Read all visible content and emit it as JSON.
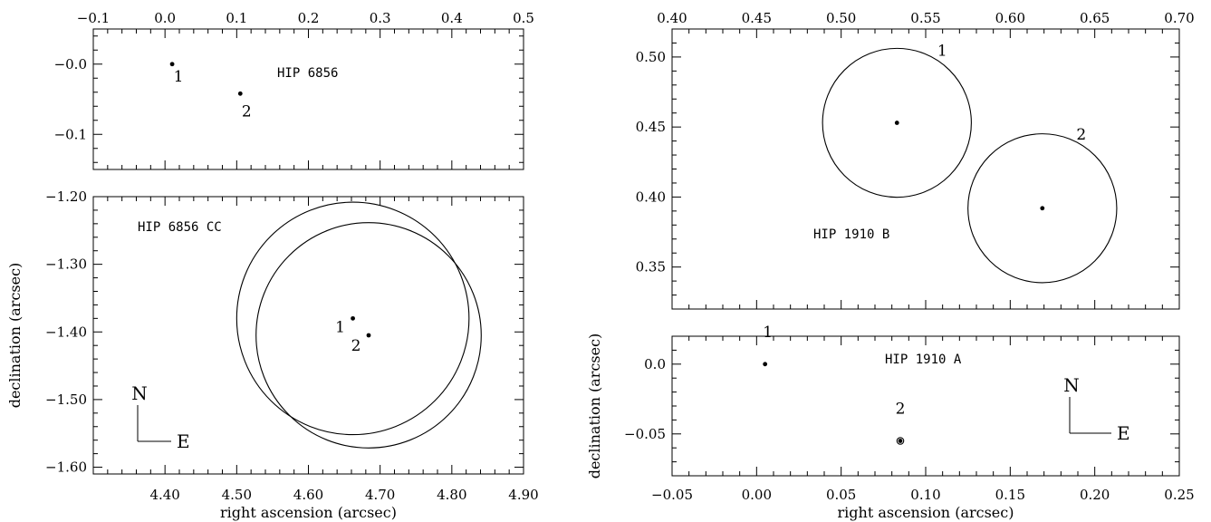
{
  "chart_data": [
    {
      "type": "scatter",
      "panel": "left-top",
      "x_axis_position": "top",
      "xlim": [
        -0.1,
        0.5
      ],
      "ylim": [
        -0.15,
        0.05
      ],
      "xticks": [
        -0.1,
        0.0,
        0.1,
        0.2,
        0.3,
        0.4,
        0.5
      ],
      "xtick_labels": [
        "−0.1",
        "0.0",
        "0.1",
        "0.2",
        "0.3",
        "0.4",
        "0.5"
      ],
      "yticks": [
        -0.1,
        0.0
      ],
      "ytick_labels": [
        "−0.1",
        "−0.0"
      ],
      "annotation": "HIP 6856",
      "points": [
        {
          "label": "1",
          "x": 0.01,
          "y": 0.0
        },
        {
          "label": "2",
          "x": 0.105,
          "y": -0.042
        }
      ]
    },
    {
      "type": "scatter",
      "panel": "left-bottom",
      "xlim": [
        4.3,
        4.9
      ],
      "ylim": [
        -1.61,
        -1.2
      ],
      "xticks": [
        4.4,
        4.5,
        4.6,
        4.7,
        4.8,
        4.9
      ],
      "xtick_labels": [
        "4.40",
        "4.50",
        "4.60",
        "4.70",
        "4.80",
        "4.90"
      ],
      "yticks": [
        -1.2,
        -1.3,
        -1.4,
        -1.5,
        -1.6
      ],
      "ytick_labels": [
        "−1.20",
        "−1.30",
        "−1.40",
        "−1.50",
        "−1.60"
      ],
      "xlabel": "right ascension (arcsec)",
      "ylabel": "declination (arcsec)",
      "annotation": "HIP 6856 CC",
      "compass": {
        "north": "N",
        "east": "E"
      },
      "points": [
        {
          "label": "1",
          "x": 4.662,
          "y": -1.38
        },
        {
          "label": "2",
          "x": 4.684,
          "y": -1.405
        }
      ],
      "circles": [
        {
          "x": 4.662,
          "y": -1.38,
          "r": 0.162
        },
        {
          "x": 4.684,
          "y": -1.405,
          "r": 0.157
        }
      ]
    },
    {
      "type": "scatter",
      "panel": "right-top",
      "x_axis_position": "top",
      "xlim": [
        0.4,
        0.7
      ],
      "ylim": [
        0.32,
        0.52
      ],
      "xticks": [
        0.4,
        0.45,
        0.5,
        0.55,
        0.6,
        0.65,
        0.7
      ],
      "xtick_labels": [
        "0.40",
        "0.45",
        "0.50",
        "0.55",
        "0.60",
        "0.65",
        "0.70"
      ],
      "yticks": [
        0.35,
        0.4,
        0.45,
        0.5
      ],
      "ytick_labels": [
        "0.35",
        "0.40",
        "0.45",
        "0.50"
      ],
      "annotation": "HIP 1910 B",
      "points": [
        {
          "label": "1",
          "x": 0.533,
          "y": 0.453
        },
        {
          "label": "2",
          "x": 0.619,
          "y": 0.392
        }
      ],
      "circles": [
        {
          "x": 0.533,
          "y": 0.453,
          "r": 0.044
        },
        {
          "x": 0.619,
          "y": 0.392,
          "r": 0.044
        }
      ]
    },
    {
      "type": "scatter",
      "panel": "right-bottom",
      "xlim": [
        -0.05,
        0.25
      ],
      "ylim": [
        -0.08,
        0.02
      ],
      "xticks": [
        -0.05,
        0.0,
        0.05,
        0.1,
        0.15,
        0.2,
        0.25
      ],
      "xtick_labels": [
        "−0.05",
        "0.00",
        "0.05",
        "0.10",
        "0.15",
        "0.20",
        "0.25"
      ],
      "yticks": [
        -0.05,
        0.0
      ],
      "ytick_labels": [
        "−0.05",
        "0.0"
      ],
      "xlabel": "right ascension (arcsec)",
      "ylabel": "declination (arcsec)",
      "annotation": "HIP 1910 A",
      "compass": {
        "north": "N",
        "east": "E"
      },
      "points": [
        {
          "label": "1",
          "x": 0.005,
          "y": 0.0
        },
        {
          "label": "2",
          "x": 0.085,
          "y": -0.055
        }
      ],
      "circles": [
        {
          "x": 0.085,
          "y": -0.055,
          "r": 0.002
        }
      ]
    }
  ]
}
